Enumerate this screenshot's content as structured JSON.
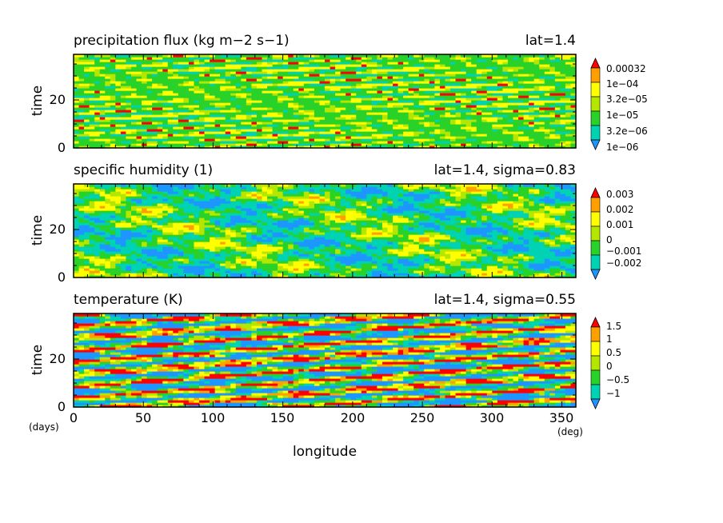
{
  "chart_data": [
    {
      "type": "heatmap",
      "title": "precipitation flux (kg m−2 s−1)",
      "subtitle": "lat=1.4",
      "ylabel": "time",
      "xlim": [
        0,
        360
      ],
      "ylim": [
        0,
        39
      ],
      "y_ticks": [
        0,
        20
      ],
      "colorbar_labels": [
        "0.00032",
        "1e−04",
        "3.2e−05",
        "1e−05",
        "3.2e−06",
        "1e−06"
      ],
      "colors": [
        "#1e96ff",
        "#00d2b4",
        "#28d228",
        "#b4e600",
        "#ffff00",
        "#ffa000",
        "#ff0000"
      ],
      "pattern": "precip"
    },
    {
      "type": "heatmap",
      "title": "specific humidity (1)",
      "subtitle": "lat=1.4, sigma=0.83",
      "ylabel": "time",
      "xlim": [
        0,
        360
      ],
      "ylim": [
        0,
        39
      ],
      "y_ticks": [
        0,
        20
      ],
      "colorbar_labels": [
        "0.003",
        "0.002",
        "0.001",
        "0",
        "−0.001",
        "−0.002"
      ],
      "colors": [
        "#1e96ff",
        "#00d2b4",
        "#28d228",
        "#b4e600",
        "#ffff00",
        "#ffa000",
        "#ff0000"
      ],
      "pattern": "humidity"
    },
    {
      "type": "heatmap",
      "title": "temperature (K)",
      "subtitle": "lat=1.4, sigma=0.55",
      "ylabel": "time",
      "xlabel": "longitude",
      "xlim": [
        0,
        360
      ],
      "ylim": [
        0,
        39
      ],
      "y_ticks": [
        0,
        20
      ],
      "x_ticks": [
        0,
        50,
        100,
        150,
        200,
        250,
        300,
        350
      ],
      "x_unit": "(deg)",
      "y_unit": "(days)",
      "colorbar_labels": [
        "1.5",
        "1",
        "0.5",
        "0",
        "−0.5",
        "−1"
      ],
      "colors": [
        "#1e96ff",
        "#00d2b4",
        "#28d228",
        "#b4e600",
        "#ffff00",
        "#ffa000",
        "#ff0000"
      ],
      "pattern": "temperature"
    }
  ]
}
